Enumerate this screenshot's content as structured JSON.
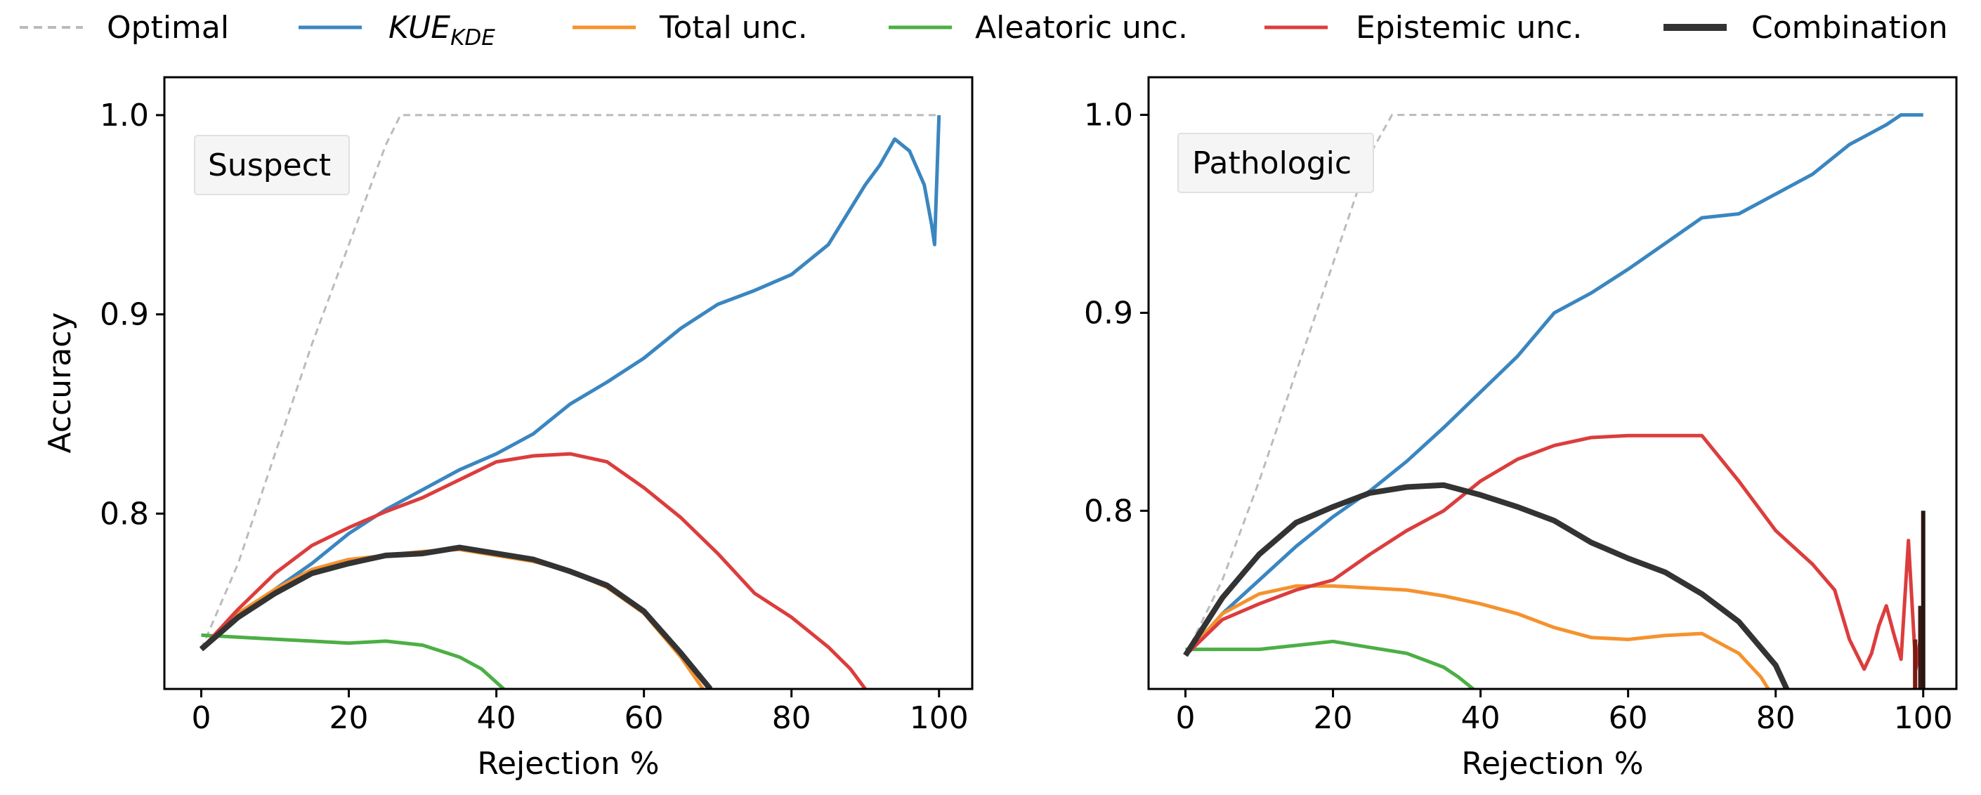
{
  "chart_data": {
    "legend": {
      "placement": "top",
      "entries": [
        {
          "key": "optimal",
          "label": "Optimal",
          "color": "#bbbbbb",
          "style": "dashed"
        },
        {
          "key": "kue",
          "label_main": "KUE",
          "label_sub": "KDE",
          "color": "#3a86c0",
          "style": "solid"
        },
        {
          "key": "total",
          "label": "Total unc.",
          "color": "#f5922e",
          "style": "solid"
        },
        {
          "key": "aleatoric",
          "label": "Aleatoric unc.",
          "color": "#4caf45",
          "style": "solid"
        },
        {
          "key": "epistemic",
          "label": "Epistemic unc.",
          "color": "#dc3d3d",
          "style": "solid"
        },
        {
          "key": "combination",
          "label": "Combination",
          "color": "#333333",
          "style": "solid-thick"
        }
      ]
    },
    "charts": [
      {
        "type": "line",
        "panel_label": "Suspect",
        "xlabel": "Rejection %",
        "ylabel": "Accuracy",
        "xlim": [
          -5,
          104.5
        ],
        "ylim": [
          0.712,
          1.019
        ],
        "xticks": [
          0,
          20,
          40,
          60,
          80,
          100
        ],
        "yticks": [
          0.8,
          0.9,
          1.0
        ],
        "ytick_labels": [
          "0.8",
          "0.9",
          "1.0"
        ],
        "series": [
          {
            "key": "optimal",
            "x": [
              0,
              5,
              10,
              15,
              20,
              25,
              27,
              100
            ],
            "y": [
              0.732,
              0.775,
              0.83,
              0.885,
              0.935,
              0.985,
              1.0,
              1.0
            ]
          },
          {
            "key": "kue",
            "x": [
              0,
              5,
              10,
              15,
              20,
              25,
              30,
              35,
              40,
              45,
              50,
              55,
              60,
              65,
              70,
              75,
              80,
              85,
              90,
              92,
              94,
              96,
              98,
              99,
              99.4,
              100
            ],
            "y": [
              0.732,
              0.748,
              0.762,
              0.775,
              0.79,
              0.802,
              0.812,
              0.822,
              0.83,
              0.84,
              0.855,
              0.866,
              0.878,
              0.893,
              0.905,
              0.912,
              0.92,
              0.935,
              0.965,
              0.975,
              0.988,
              0.982,
              0.965,
              0.945,
              0.935,
              1.0
            ]
          },
          {
            "key": "total",
            "x": [
              0,
              5,
              10,
              15,
              20,
              25,
              30,
              35,
              40,
              45,
              50,
              55,
              60,
              65,
              68
            ],
            "y": [
              0.732,
              0.75,
              0.762,
              0.772,
              0.777,
              0.779,
              0.781,
              0.782,
              0.779,
              0.776,
              0.771,
              0.763,
              0.75,
              0.728,
              0.712
            ]
          },
          {
            "key": "aleatoric",
            "x": [
              0,
              5,
              10,
              15,
              20,
              25,
              30,
              35,
              38,
              41
            ],
            "y": [
              0.739,
              0.738,
              0.737,
              0.736,
              0.735,
              0.736,
              0.734,
              0.728,
              0.722,
              0.712
            ]
          },
          {
            "key": "epistemic",
            "x": [
              0,
              5,
              10,
              15,
              20,
              25,
              30,
              35,
              40,
              45,
              50,
              55,
              60,
              65,
              70,
              75,
              80,
              85,
              88,
              90
            ],
            "y": [
              0.732,
              0.752,
              0.77,
              0.784,
              0.793,
              0.801,
              0.808,
              0.817,
              0.826,
              0.829,
              0.83,
              0.826,
              0.813,
              0.798,
              0.78,
              0.76,
              0.748,
              0.733,
              0.722,
              0.712
            ]
          },
          {
            "key": "combination",
            "x": [
              0,
              5,
              10,
              15,
              20,
              25,
              30,
              35,
              40,
              45,
              50,
              55,
              60,
              65,
              69
            ],
            "y": [
              0.732,
              0.748,
              0.76,
              0.77,
              0.775,
              0.779,
              0.78,
              0.783,
              0.78,
              0.777,
              0.771,
              0.764,
              0.751,
              0.73,
              0.712
            ]
          }
        ]
      },
      {
        "type": "line",
        "panel_label": "Pathologic",
        "xlabel": "Rejection %",
        "ylabel": "",
        "xlim": [
          -5,
          104.5
        ],
        "ylim": [
          0.71,
          1.019
        ],
        "xticks": [
          0,
          20,
          40,
          60,
          80,
          100
        ],
        "yticks": [
          0.8,
          0.9,
          1.0
        ],
        "ytick_labels": [
          "0.8",
          "0.9",
          "1.0"
        ],
        "series": [
          {
            "key": "optimal",
            "x": [
              0,
              5,
              10,
              15,
              20,
              25,
              28,
              100
            ],
            "y": [
              0.727,
              0.765,
              0.815,
              0.87,
              0.925,
              0.98,
              1.0,
              1.0
            ]
          },
          {
            "key": "kue",
            "x": [
              0,
              5,
              10,
              15,
              20,
              25,
              30,
              35,
              40,
              45,
              50,
              55,
              60,
              65,
              70,
              75,
              80,
              85,
              90,
              95,
              97,
              100
            ],
            "y": [
              0.727,
              0.748,
              0.765,
              0.782,
              0.797,
              0.81,
              0.825,
              0.842,
              0.86,
              0.878,
              0.9,
              0.91,
              0.922,
              0.935,
              0.948,
              0.95,
              0.96,
              0.97,
              0.985,
              0.995,
              1.0,
              1.0
            ]
          },
          {
            "key": "total",
            "x": [
              0,
              5,
              10,
              15,
              20,
              25,
              30,
              35,
              40,
              45,
              50,
              55,
              60,
              65,
              70,
              75,
              78,
              79
            ],
            "y": [
              0.727,
              0.748,
              0.758,
              0.762,
              0.762,
              0.761,
              0.76,
              0.757,
              0.753,
              0.748,
              0.741,
              0.736,
              0.735,
              0.737,
              0.738,
              0.728,
              0.716,
              0.71
            ]
          },
          {
            "key": "aleatoric",
            "x": [
              0,
              5,
              10,
              15,
              20,
              25,
              30,
              35,
              37,
              39
            ],
            "y": [
              0.73,
              0.73,
              0.73,
              0.732,
              0.734,
              0.731,
              0.728,
              0.721,
              0.716,
              0.71
            ]
          },
          {
            "key": "epistemic",
            "x": [
              0,
              5,
              10,
              15,
              20,
              25,
              30,
              35,
              40,
              45,
              50,
              55,
              60,
              65,
              70,
              75,
              80,
              85,
              88,
              90,
              92,
              93,
              94,
              95,
              96,
              97,
              98,
              99,
              100
            ],
            "y": [
              0.727,
              0.745,
              0.753,
              0.76,
              0.765,
              0.778,
              0.79,
              0.8,
              0.815,
              0.826,
              0.833,
              0.837,
              0.838,
              0.838,
              0.838,
              0.815,
              0.79,
              0.773,
              0.76,
              0.735,
              0.72,
              0.728,
              0.742,
              0.752,
              0.738,
              0.725,
              0.785,
              0.72,
              0.745
            ]
          },
          {
            "key": "combination",
            "x": [
              0,
              5,
              10,
              15,
              20,
              25,
              30,
              35,
              40,
              45,
              50,
              55,
              60,
              65,
              70,
              75,
              80,
              81.5
            ],
            "y": [
              0.727,
              0.756,
              0.778,
              0.794,
              0.802,
              0.809,
              0.812,
              0.813,
              0.808,
              0.802,
              0.795,
              0.784,
              0.776,
              0.769,
              0.758,
              0.744,
              0.722,
              0.71
            ]
          }
        ],
        "end_spikes": [
          {
            "x": 98.9,
            "y_from": 0.71,
            "y_to": 0.735,
            "color": "#7a1a12"
          },
          {
            "x": 99.6,
            "y_from": 0.71,
            "y_to": 0.752,
            "color": "#3a1a16"
          },
          {
            "x": 100,
            "y_from": 0.71,
            "y_to": 0.8,
            "color": "#2a1512"
          }
        ]
      }
    ]
  }
}
